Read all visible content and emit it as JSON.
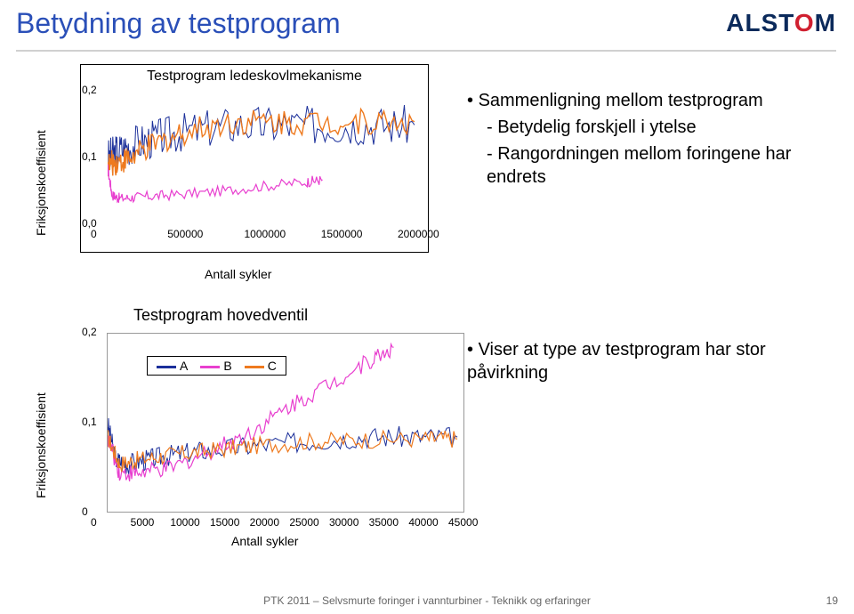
{
  "title": {
    "text": "Betydning av testprogram",
    "color": "#2a4fb8",
    "fontsize": 32
  },
  "logo": {
    "pre": "ALST",
    "o": "O",
    "post": "M",
    "color": "#0b2a5b",
    "accent": "#d02030"
  },
  "bullets_top": {
    "l1": "Sammenligning mellom testprogram",
    "l2a": "Betydelig forskjell i ytelse",
    "l2b": "Rangordningen mellom foringene har endrets"
  },
  "bullets_bottom": {
    "l1": "Viser at type av testprogram har stor påvirkning"
  },
  "chart1": {
    "type": "line",
    "title": "Testprogram ledeskovlmekanisme",
    "ylabel": "Friksjonskoeffisient",
    "xlabel": "Antall sykler",
    "xlim": [
      0,
      2000000
    ],
    "ylim": [
      0.0,
      0.2
    ],
    "xticks": [
      0,
      500000,
      1000000,
      1500000,
      2000000
    ],
    "yticks": [
      0.0,
      0.1,
      0.2
    ],
    "ytick_labels": [
      "0,0",
      "0,1",
      "0,2"
    ],
    "series": [
      {
        "name": "blue",
        "color": "#1b2f9a",
        "width": 1.0,
        "noise": 0.03,
        "points": [
          [
            0,
            0.1
          ],
          [
            60000,
            0.11
          ],
          [
            150000,
            0.12
          ],
          [
            300000,
            0.13
          ],
          [
            500000,
            0.14
          ],
          [
            800000,
            0.15
          ],
          [
            1100000,
            0.15
          ],
          [
            1400000,
            0.15
          ],
          [
            1700000,
            0.15
          ],
          [
            2000000,
            0.15
          ]
        ]
      },
      {
        "name": "orange",
        "color": "#ee7a1f",
        "width": 1.4,
        "noise": 0.02,
        "points": [
          [
            0,
            0.09
          ],
          [
            60000,
            0.095
          ],
          [
            150000,
            0.1
          ],
          [
            300000,
            0.12
          ],
          [
            500000,
            0.14
          ],
          [
            800000,
            0.155
          ],
          [
            1100000,
            0.155
          ],
          [
            1400000,
            0.155
          ],
          [
            1700000,
            0.155
          ],
          [
            2000000,
            0.155
          ]
        ]
      },
      {
        "name": "magenta",
        "color": "#e83fcf",
        "width": 1.2,
        "noise": 0.008,
        "points": [
          [
            0,
            0.085
          ],
          [
            30000,
            0.045
          ],
          [
            80000,
            0.04
          ],
          [
            200000,
            0.042
          ],
          [
            400000,
            0.045
          ],
          [
            700000,
            0.05
          ],
          [
            1000000,
            0.058
          ],
          [
            1300000,
            0.065
          ],
          [
            1400000,
            0.068
          ]
        ]
      }
    ],
    "background": "#ffffff",
    "tick_fontsize": 12,
    "label_fontsize": 14
  },
  "chart2": {
    "type": "line",
    "title": "Testprogram hovedventil",
    "ylabel": "Friksjonskoeffisient",
    "xlabel": "Antall sykler",
    "xlim": [
      0,
      45000
    ],
    "ylim": [
      0.0,
      0.2
    ],
    "xticks": [
      0,
      5000,
      10000,
      15000,
      20000,
      25000,
      30000,
      35000,
      40000,
      45000
    ],
    "yticks": [
      0.0,
      0.1,
      0.2
    ],
    "ytick_labels": [
      "0",
      "0,1",
      "0,2"
    ],
    "legend": {
      "items": [
        {
          "label": "A",
          "color": "#1b2f9a"
        },
        {
          "label": "B",
          "color": "#e83fcf"
        },
        {
          "label": "C",
          "color": "#ee7a1f"
        }
      ]
    },
    "series": [
      {
        "name": "A",
        "color": "#1b2f9a",
        "width": 1.0,
        "noise": 0.012,
        "points": [
          [
            0,
            0.1
          ],
          [
            1000,
            0.06
          ],
          [
            2500,
            0.055
          ],
          [
            5000,
            0.06
          ],
          [
            8000,
            0.065
          ],
          [
            12000,
            0.07
          ],
          [
            18000,
            0.075
          ],
          [
            25000,
            0.08
          ],
          [
            32000,
            0.085
          ],
          [
            38000,
            0.085
          ],
          [
            44000,
            0.085
          ]
        ]
      },
      {
        "name": "B",
        "color": "#e83fcf",
        "width": 1.2,
        "noise": 0.01,
        "points": [
          [
            0,
            0.085
          ],
          [
            1500,
            0.045
          ],
          [
            4000,
            0.045
          ],
          [
            8000,
            0.05
          ],
          [
            13000,
            0.07
          ],
          [
            18000,
            0.09
          ],
          [
            23000,
            0.12
          ],
          [
            28000,
            0.145
          ],
          [
            33000,
            0.17
          ],
          [
            36000,
            0.185
          ]
        ]
      },
      {
        "name": "C",
        "color": "#ee7a1f",
        "width": 1.2,
        "noise": 0.01,
        "points": [
          [
            0,
            0.085
          ],
          [
            1500,
            0.055
          ],
          [
            4000,
            0.06
          ],
          [
            8000,
            0.065
          ],
          [
            13000,
            0.07
          ],
          [
            18000,
            0.075
          ],
          [
            25000,
            0.08
          ],
          [
            32000,
            0.082
          ],
          [
            40000,
            0.083
          ],
          [
            44000,
            0.083
          ]
        ]
      }
    ],
    "background": "#ffffff"
  },
  "footer": "PTK 2011 – Selvsmurte foringer i vannturbiner - Teknikk og erfaringer",
  "pagenum": "19"
}
